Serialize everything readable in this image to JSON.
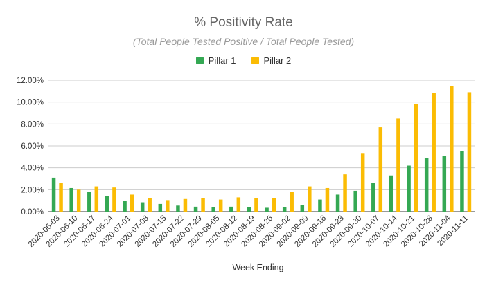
{
  "colors": {
    "pillar1": "#34a853",
    "pillar2": "#fbbc04"
  },
  "chart_data": {
    "type": "bar",
    "title": "% Positivity Rate",
    "subtitle": "(Total People Tested Positive / Total People Tested)",
    "xlabel": "Week Ending",
    "ylabel": "",
    "ylim": [
      0,
      12
    ],
    "yticks": [
      "0.00%",
      "2.00%",
      "4.00%",
      "6.00%",
      "8.00%",
      "10.00%",
      "12.00%"
    ],
    "grid": true,
    "legend_position": "top",
    "categories": [
      "2020-06-03",
      "2020-06-10",
      "2020-06-17",
      "2020-06-24",
      "2020-07-01",
      "2020-07-08",
      "2020-07-15",
      "2020-07-22",
      "2020-07-29",
      "2020-08-05",
      "2020-08-12",
      "2020-08-19",
      "2020-08-26",
      "2020-09-02",
      "2020-09-09",
      "2020-09-16",
      "2020-09-23",
      "2020-09-30",
      "2020-10-07",
      "2020-10-14",
      "2020-10-21",
      "2020-10-28",
      "2020-11-04",
      "2020-11-11"
    ],
    "series": [
      {
        "name": "Pillar 1",
        "values": [
          3.1,
          2.15,
          1.8,
          1.4,
          1.0,
          0.85,
          0.7,
          0.55,
          0.45,
          0.4,
          0.45,
          0.4,
          0.35,
          0.4,
          0.6,
          1.1,
          1.55,
          1.9,
          2.6,
          3.3,
          4.2,
          4.9,
          5.1,
          5.5
        ]
      },
      {
        "name": "Pillar 2",
        "values": [
          2.6,
          2.0,
          2.3,
          2.2,
          1.55,
          1.25,
          1.05,
          1.15,
          1.25,
          1.1,
          1.3,
          1.2,
          1.2,
          1.8,
          2.3,
          2.15,
          3.4,
          5.35,
          7.7,
          8.5,
          9.8,
          10.85,
          11.45,
          10.9
        ]
      }
    ]
  }
}
